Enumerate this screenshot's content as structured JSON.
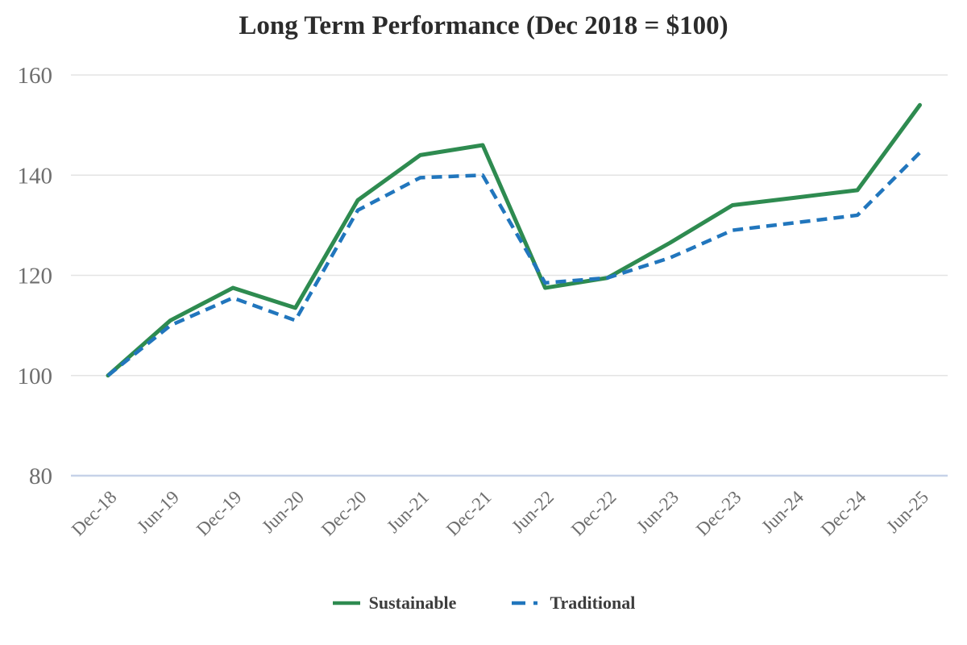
{
  "chart_data": {
    "type": "line",
    "title": "Long Term Performance (Dec 2018 = $100)",
    "categories": [
      "Dec-18",
      "Jun-19",
      "Dec-19",
      "Jun-20",
      "Dec-20",
      "Jun-21",
      "Dec-21",
      "Jun-22",
      "Dec-22",
      "Jun-23",
      "Dec-23",
      "Jun-24",
      "Dec-24",
      "Jun-25"
    ],
    "series": [
      {
        "name": "Sustainable",
        "style": "solid",
        "color": "#2e8b50",
        "values": [
          100,
          111,
          117.5,
          113.5,
          135,
          144,
          146,
          117.5,
          119.5,
          126.5,
          134,
          135.5,
          137,
          154
        ]
      },
      {
        "name": "Traditional",
        "style": "dashed",
        "color": "#2176bd",
        "values": [
          100,
          110,
          115.5,
          111,
          133,
          139.5,
          140,
          118.5,
          119.5,
          123.5,
          129,
          130.5,
          132,
          144.5
        ]
      }
    ],
    "xlabel": "",
    "ylabel": "",
    "ylim": [
      80,
      160
    ],
    "yticks": [
      80,
      100,
      120,
      140,
      160
    ],
    "grid": true,
    "legend_position": "bottom",
    "x_label_rotation": -45,
    "colors": {
      "gridline": "#e3e3e3",
      "axis_line": "#c6d2e8",
      "tick_label": "#6e6e6e",
      "title": "#2b2b2b",
      "legend_text": "#3d3d3d",
      "background": "#ffffff"
    }
  }
}
